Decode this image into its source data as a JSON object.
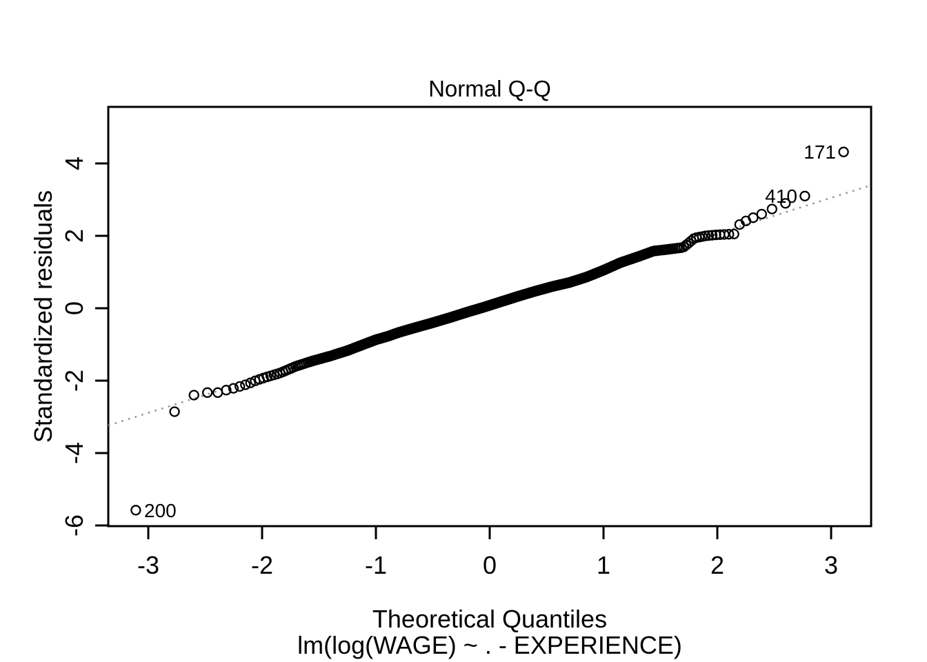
{
  "chart_data": {
    "type": "scatter",
    "title": "Normal Q-Q",
    "xlabel": "Theoretical Quantiles",
    "sub_label": "lm(log(WAGE) ~ . - EXPERIENCE)",
    "ylabel": "Standardized residuals",
    "xlim": [
      -3.35,
      3.35
    ],
    "ylim": [
      -6.02,
      5.56
    ],
    "x_ticks": [
      -3,
      -2,
      -1,
      0,
      1,
      2,
      3
    ],
    "y_ticks": [
      -6,
      -4,
      -2,
      0,
      2,
      4
    ],
    "grid": false,
    "legend": null,
    "n_points": 534,
    "quantile_method": "qnorm((i - 0.5) / n)",
    "point_style": {
      "marker": "open-circle",
      "color": "#000000",
      "radius_px": 6.5
    },
    "reference_line": {
      "style": "dotted",
      "color": "#949494",
      "intercept": 0.08,
      "slope": 0.99
    },
    "qq_profile": [
      [
        -3.11,
        -5.58
      ],
      [
        -2.77,
        -2.86
      ],
      [
        -2.6,
        -2.4
      ],
      [
        -2.48,
        -2.33
      ],
      [
        -2.39,
        -2.33
      ],
      [
        -2.315,
        -2.26
      ],
      [
        -2.25,
        -2.21
      ],
      [
        -2.195,
        -2.16
      ],
      [
        -2.13,
        -2.1
      ],
      [
        -2.05,
        -1.99
      ],
      [
        -1.95,
        -1.89
      ],
      [
        -1.85,
        -1.8
      ],
      [
        -1.7,
        -1.6
      ],
      [
        -1.55,
        -1.45
      ],
      [
        -1.4,
        -1.32
      ],
      [
        -1.25,
        -1.17
      ],
      [
        -1.1,
        -0.99
      ],
      [
        -1.0,
        -0.87
      ],
      [
        -0.9,
        -0.78
      ],
      [
        -0.8,
        -0.67
      ],
      [
        -0.67,
        -0.55
      ],
      [
        -0.5,
        -0.4
      ],
      [
        -0.35,
        -0.26
      ],
      [
        -0.2,
        -0.11
      ],
      [
        -0.05,
        0.03
      ],
      [
        0.1,
        0.18
      ],
      [
        0.25,
        0.33
      ],
      [
        0.4,
        0.47
      ],
      [
        0.55,
        0.6
      ],
      [
        0.7,
        0.71
      ],
      [
        0.85,
        0.86
      ],
      [
        1.0,
        1.05
      ],
      [
        1.15,
        1.26
      ],
      [
        1.3,
        1.42
      ],
      [
        1.44,
        1.58
      ],
      [
        1.55,
        1.62
      ],
      [
        1.7,
        1.68
      ],
      [
        1.74,
        1.78
      ],
      [
        1.8,
        1.94
      ],
      [
        1.9,
        2.0
      ],
      [
        2.0,
        2.03
      ],
      [
        2.08,
        2.04
      ],
      [
        2.15,
        2.05
      ],
      [
        2.195,
        2.31
      ],
      [
        2.25,
        2.41
      ],
      [
        2.315,
        2.5
      ],
      [
        2.39,
        2.6
      ],
      [
        2.48,
        2.74
      ],
      [
        2.6,
        2.9
      ],
      [
        2.77,
        3.1
      ],
      [
        3.11,
        4.32
      ]
    ],
    "labeled_points": [
      {
        "label": "200",
        "x": -3.11,
        "y": -5.58,
        "side": "right"
      },
      {
        "label": "410",
        "x": 2.77,
        "y": 3.1,
        "side": "left"
      },
      {
        "label": "171",
        "x": 3.11,
        "y": 4.32,
        "side": "left"
      }
    ]
  }
}
